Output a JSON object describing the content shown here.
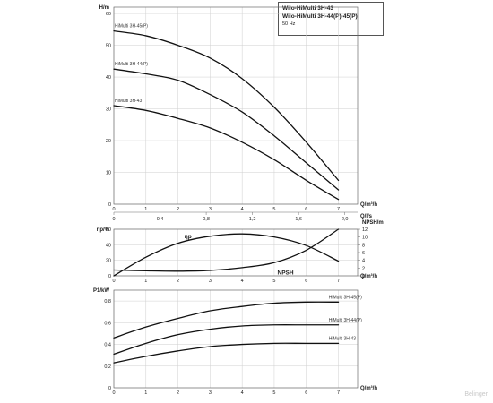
{
  "header": {
    "line1": "Wilo-HiMulti 3H-43",
    "line2": "Wilo-HiMulti 3H-44(P)-45(P)",
    "line3": "50 Hz"
  },
  "watermark": "Belinger",
  "chart_data": [
    {
      "id": "head",
      "type": "line",
      "ylabel": "H/m",
      "xlabel": "Q/m³/h",
      "xlim": [
        0,
        7.6
      ],
      "ylim": [
        0,
        62
      ],
      "xticks": [
        0,
        1,
        2,
        3,
        4,
        5,
        6,
        7
      ],
      "yticks": [
        0,
        10,
        20,
        30,
        40,
        50,
        60
      ],
      "grid": true,
      "secondary_x": {
        "label": "Q/l/s",
        "factor": 3.6,
        "ticks": [
          "0",
          "0,4",
          "0,8",
          "1,2",
          "1,6",
          "2,0"
        ],
        "values": [
          0,
          0.4,
          0.8,
          1.2,
          1.6,
          2.0
        ]
      },
      "series": [
        {
          "name": "HiMulti 3H-45(P)",
          "x": [
            0,
            1,
            2,
            3,
            4,
            5,
            6,
            7
          ],
          "y": [
            54.5,
            53,
            50,
            46,
            39.5,
            30.5,
            19.5,
            7.5
          ]
        },
        {
          "name": "HiMulti 3H-44(P)",
          "x": [
            0,
            1,
            2,
            3,
            4,
            5,
            6,
            7
          ],
          "y": [
            42.5,
            41,
            39,
            34.5,
            29,
            21.5,
            13,
            4.5
          ]
        },
        {
          "name": "HiMulti 3H-43",
          "x": [
            0,
            1,
            2,
            3,
            4,
            5,
            6,
            7
          ],
          "y": [
            31,
            29.5,
            27,
            24,
            19.5,
            14,
            7.5,
            1.5
          ]
        }
      ]
    },
    {
      "id": "efficiency",
      "type": "line",
      "ylabel": "ηp/%",
      "y2label": "NPSH/m",
      "xlabel": "Q/m³/h",
      "xlim": [
        0,
        7.6
      ],
      "ylim": [
        0,
        60
      ],
      "y2lim": [
        0,
        12
      ],
      "xticks": [
        0,
        1,
        2,
        3,
        4,
        5,
        6,
        7
      ],
      "yticks": [
        0,
        20,
        40,
        60
      ],
      "y2ticks": [
        0,
        2,
        4,
        6,
        8,
        10,
        12
      ],
      "grid": true,
      "series": [
        {
          "name": "ηp",
          "axis": "left",
          "x": [
            0,
            1,
            2,
            3,
            4,
            5,
            6,
            7
          ],
          "y": [
            0,
            24,
            42,
            51,
            54,
            50,
            39,
            19
          ]
        },
        {
          "name": "NPSH",
          "axis": "right",
          "x": [
            0,
            1,
            2,
            3,
            4,
            5,
            6,
            7
          ],
          "y": [
            1.5,
            1.3,
            1.2,
            1.4,
            2.1,
            3.4,
            6.6,
            12
          ]
        }
      ]
    },
    {
      "id": "power",
      "type": "line",
      "ylabel": "P1/kW",
      "xlabel": "Q/m³/h",
      "xlim": [
        0,
        7.6
      ],
      "ylim": [
        0,
        0.9
      ],
      "xticks": [
        0,
        1,
        2,
        3,
        4,
        5,
        6,
        7
      ],
      "yticks": [
        0,
        0.2,
        0.4,
        0.6,
        0.8
      ],
      "ytick_labels": [
        "0",
        "0,2",
        "0,4",
        "0,6",
        "0,8"
      ],
      "grid": true,
      "series": [
        {
          "name": "HiMulti 3H-45(P)",
          "x": [
            0,
            1,
            2,
            3,
            4,
            5,
            6,
            7
          ],
          "y": [
            0.46,
            0.56,
            0.64,
            0.71,
            0.75,
            0.78,
            0.79,
            0.79
          ]
        },
        {
          "name": "HiMulti 3H-44(P)",
          "x": [
            0,
            1,
            2,
            3,
            4,
            5,
            6,
            7
          ],
          "y": [
            0.31,
            0.41,
            0.49,
            0.54,
            0.57,
            0.58,
            0.58,
            0.58
          ]
        },
        {
          "name": "HiMulti 3H-43",
          "x": [
            0,
            1,
            2,
            3,
            4,
            5,
            6,
            7
          ],
          "y": [
            0.23,
            0.29,
            0.34,
            0.38,
            0.4,
            0.41,
            0.41,
            0.41
          ]
        }
      ]
    }
  ]
}
